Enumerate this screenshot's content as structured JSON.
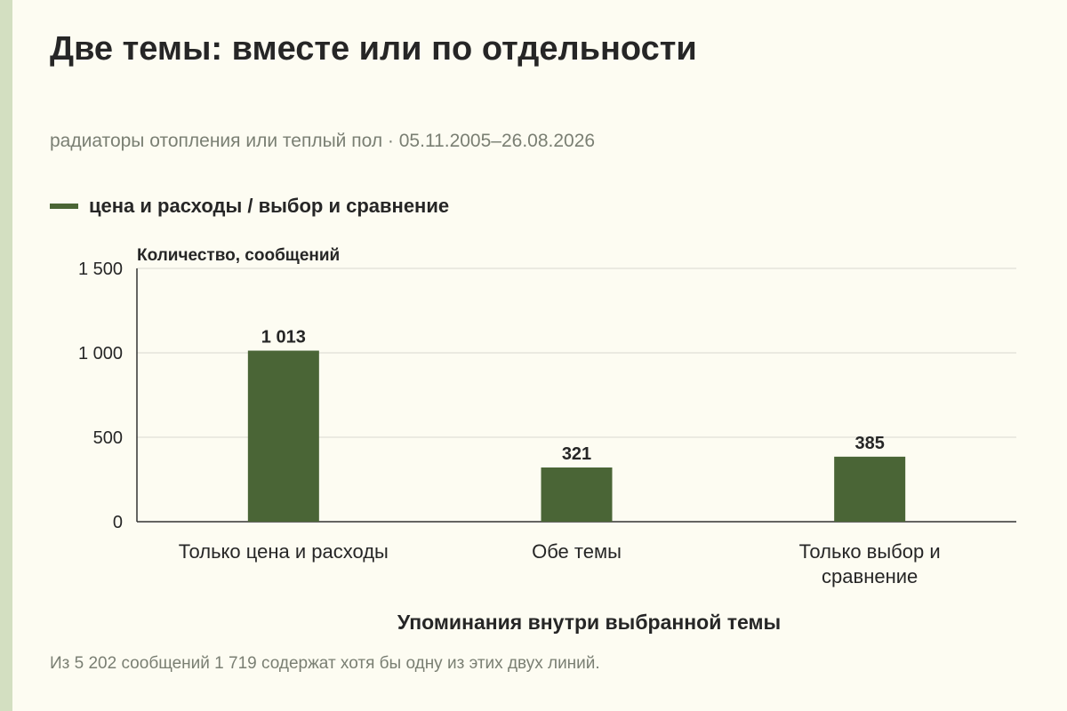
{
  "title": "Две темы: вместе или по отдельности",
  "subtitle": "радиаторы отопления или теплый пол · 05.11.2005–26.08.2026",
  "legend": {
    "label": "цена и расходы / выбор и сравнение",
    "color": "#4a6536"
  },
  "note": "Из 5 202 сообщений 1 719 содержат хотя бы одну из этих двух линий.",
  "chart_data": {
    "type": "bar",
    "categories": [
      [
        "Только цена и расходы"
      ],
      [
        "Обе темы"
      ],
      [
        "Только выбор и",
        "сравнение"
      ]
    ],
    "series": [
      {
        "name": "цена и расходы / выбор и сравнение",
        "values": [
          1013,
          321,
          385
        ],
        "labels": [
          "1 013",
          "321",
          "385"
        ]
      }
    ],
    "ylabel": "Количество, сообщений",
    "xlabel": "Упоминания внутри выбранной темы",
    "ylim": [
      0,
      1500
    ],
    "yticks": [
      0,
      500,
      1000,
      1500
    ],
    "ytick_labels": [
      "0",
      "500",
      "1 000",
      "1 500"
    ],
    "grid": true,
    "bar_color": "#4a6536",
    "grid_color": "#d9d9d0",
    "axis_color": "#333333"
  }
}
